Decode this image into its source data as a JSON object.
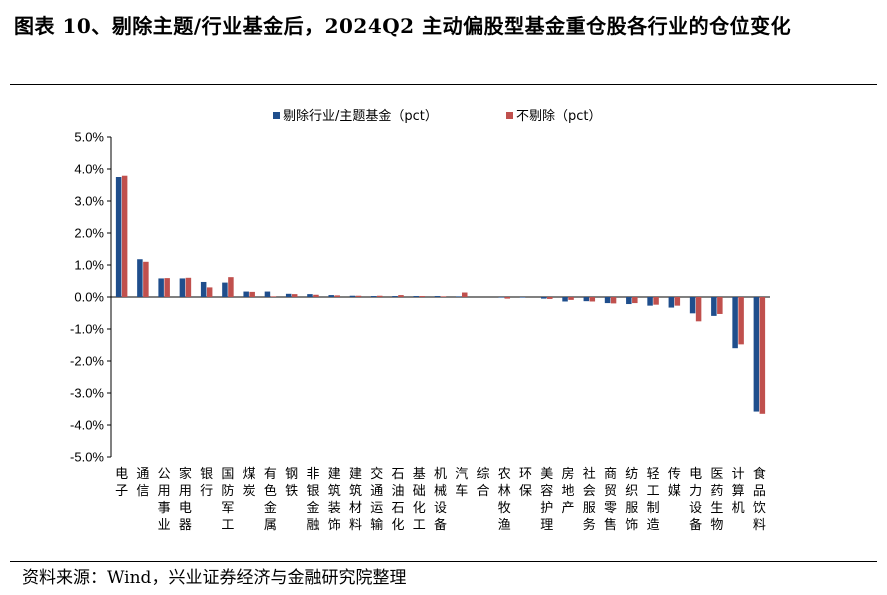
{
  "header": {
    "title": "图表 10、剔除主题/行业基金后，2024Q2 主动偏股型基金重仓股各行业的仓位变化"
  },
  "footer": {
    "source": "资料来源：Wind，兴业证券经济与金融研究院整理"
  },
  "chart_data": {
    "type": "bar",
    "title": "",
    "xlabel": "",
    "ylabel": "",
    "ylim": [
      -5.0,
      5.0
    ],
    "yticks": [
      "5.0%",
      "4.0%",
      "3.0%",
      "2.0%",
      "1.0%",
      "0.0%",
      "-1.0%",
      "-2.0%",
      "-3.0%",
      "-4.0%",
      "-5.0%"
    ],
    "legend_position": "top",
    "categories": [
      "电子",
      "通信",
      "公用事业",
      "家用电器",
      "银行",
      "国防军工",
      "煤炭",
      "有色金属",
      "钢铁",
      "非银金融",
      "建筑装饰",
      "建筑材料",
      "交通运输",
      "石油石化",
      "基础化工",
      "机械设备",
      "汽车",
      "综合",
      "农林牧渔",
      "环保",
      "美容护理",
      "房地产",
      "社会服务",
      "商贸零售",
      "纺织服饰",
      "轻工制造",
      "传媒",
      "电力设备",
      "医药生物",
      "计算机",
      "食品饮料"
    ],
    "series": [
      {
        "name": "剔除行业/主题基金（pct）",
        "color": "#1f4e8c",
        "values": [
          3.75,
          1.18,
          0.58,
          0.58,
          0.47,
          0.45,
          0.17,
          0.17,
          0.1,
          0.09,
          0.06,
          0.04,
          0.03,
          0.03,
          0.03,
          0.03,
          0.02,
          0.0,
          -0.01,
          -0.01,
          -0.05,
          -0.14,
          -0.13,
          -0.19,
          -0.22,
          -0.27,
          -0.33,
          -0.51,
          -0.59,
          -1.6,
          -3.58
        ]
      },
      {
        "name": "不剔除（pct）",
        "color": "#c0504d",
        "values": [
          3.79,
          1.1,
          0.59,
          0.6,
          0.3,
          0.62,
          0.16,
          0.02,
          0.09,
          0.07,
          0.05,
          0.04,
          0.04,
          0.06,
          0.03,
          0.02,
          0.14,
          0.0,
          -0.05,
          0.0,
          -0.06,
          -0.09,
          -0.14,
          -0.2,
          -0.19,
          -0.24,
          -0.27,
          -0.76,
          -0.53,
          -1.48,
          -3.65
        ]
      }
    ]
  }
}
